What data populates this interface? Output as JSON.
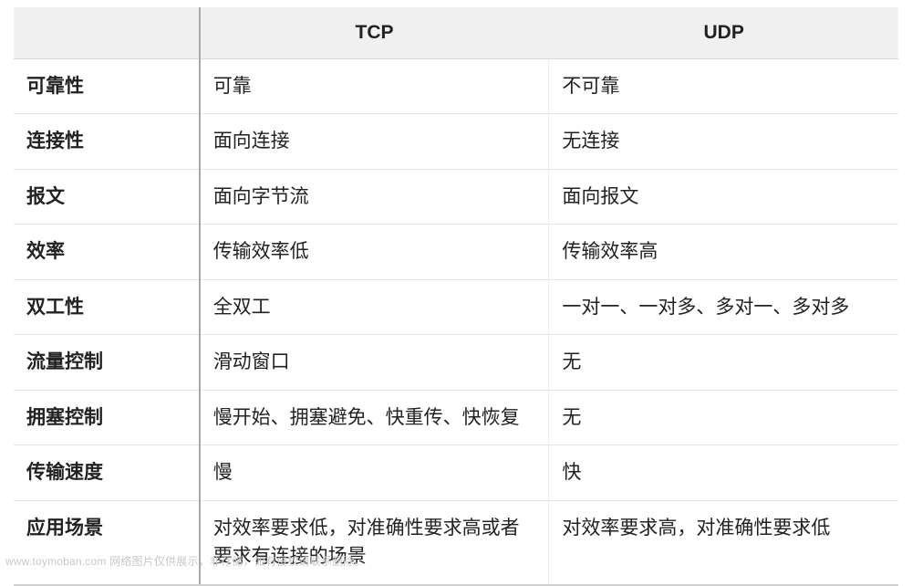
{
  "type": "table",
  "style": {
    "background_color": "#ffffff",
    "header_bg": "#f0f0f0",
    "header_weight": 700,
    "row_label_weight": 700,
    "body_weight": 400,
    "text_color": "#222222",
    "border_color": "#e5e5e5",
    "strong_divider_color": "#a9a9a9",
    "cell_fontsize": 21,
    "line_height": 1.5,
    "align_header": "center",
    "align_body": "left",
    "column_widths_pct": [
      21,
      39.5,
      39.5
    ],
    "watermark_color": "#c8c8c8",
    "watermark_fontsize": 12
  },
  "columns": [
    "",
    "TCP",
    "UDP"
  ],
  "rows": [
    {
      "label": "可靠性",
      "tcp": "可靠",
      "udp": "不可靠"
    },
    {
      "label": "连接性",
      "tcp": "面向连接",
      "udp": "无连接"
    },
    {
      "label": "报文",
      "tcp": "面向字节流",
      "udp": "面向报文"
    },
    {
      "label": "效率",
      "tcp": "传输效率低",
      "udp": "传输效率高"
    },
    {
      "label": "双工性",
      "tcp": "全双工",
      "udp": "一对一、一对多、多对一、多对多"
    },
    {
      "label": "流量控制",
      "tcp": "滑动窗口",
      "udp": "无"
    },
    {
      "label": "拥塞控制",
      "tcp": "慢开始、拥塞避免、快重传、快恢复",
      "udp": "无"
    },
    {
      "label": "传输速度",
      "tcp": "慢",
      "udp": "快"
    },
    {
      "label": "应用场景",
      "tcp": "对效率要求低，对准确性要求高或者要求有连接的场景",
      "udp": "对效率要求高，对准确性要求低"
    }
  ],
  "watermark": "www.toymoban.com 网络图片仅供展示，非存储，如有侵权请联系删除。"
}
